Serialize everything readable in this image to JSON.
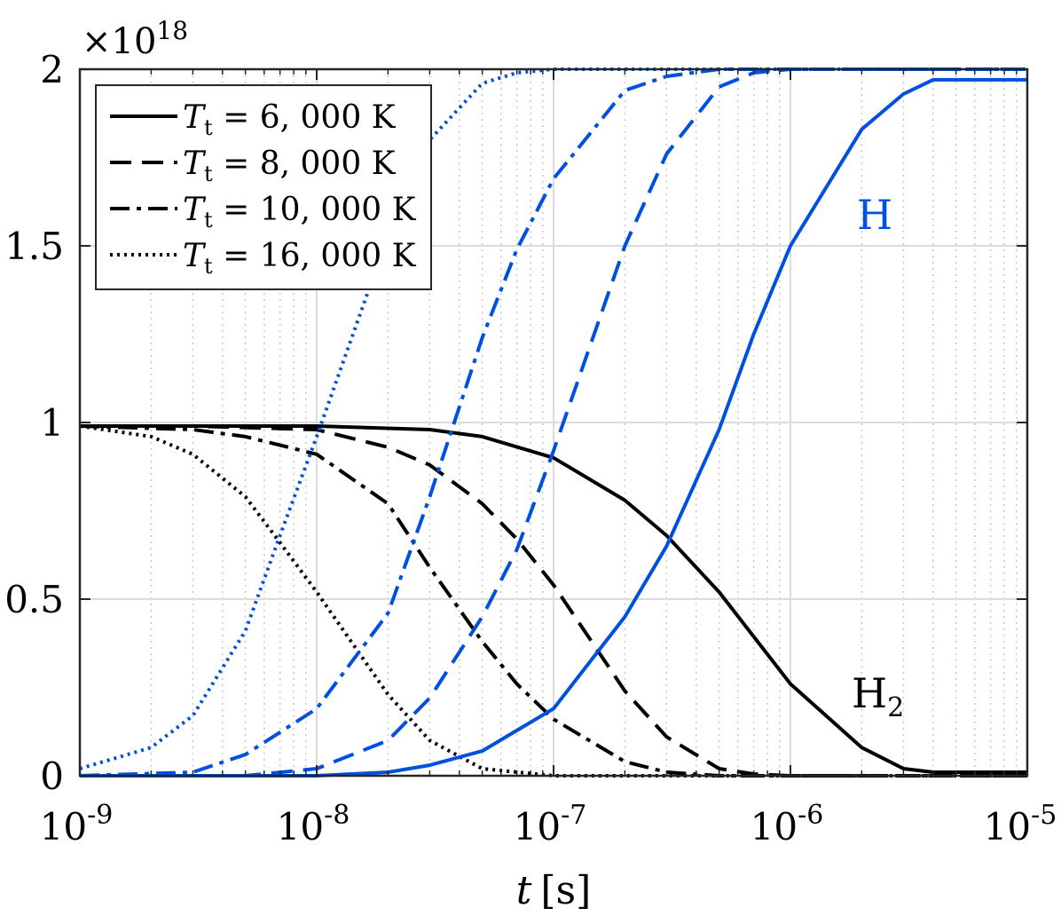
{
  "chart_data": {
    "type": "line",
    "x_scale": "log",
    "xlim": [
      "1e-9",
      "1e-5"
    ],
    "ylim": [
      0,
      2
    ],
    "grid": true,
    "legend_position": "top-left",
    "xlabel": {
      "var": "t",
      "unit": "[s]"
    },
    "y_multiplier": {
      "base": "×10",
      "exp": "18"
    },
    "x_ticks": [
      {
        "value": "1e-9",
        "base": "10",
        "exp": "-9"
      },
      {
        "value": "1e-8",
        "base": "10",
        "exp": "-8"
      },
      {
        "value": "1e-7",
        "base": "10",
        "exp": "-7"
      },
      {
        "value": "1e-6",
        "base": "10",
        "exp": "-6"
      },
      {
        "value": "1e-5",
        "base": "10",
        "exp": "-5"
      }
    ],
    "y_ticks": [
      {
        "value": 0,
        "label": "0"
      },
      {
        "value": 0.5,
        "label": "0.5"
      },
      {
        "value": 1,
        "label": "1"
      },
      {
        "value": 1.5,
        "label": "1.5"
      },
      {
        "value": 2,
        "label": "2"
      }
    ],
    "legend": [
      {
        "T": "T",
        "sub": "t",
        "text": " = 6, 000 K",
        "style": "solid"
      },
      {
        "T": "T",
        "sub": "t",
        "text": " = 8, 000 K",
        "style": "dashed"
      },
      {
        "T": "T",
        "sub": "t",
        "text": " = 10, 000 K",
        "style": "dashdot"
      },
      {
        "T": "T",
        "sub": "t",
        "text": " = 16, 000 K",
        "style": "dotted"
      }
    ],
    "annotations": [
      {
        "text": "H",
        "sub": "",
        "color": "#0050e0"
      },
      {
        "text": "H",
        "sub": "2",
        "color": "#000000"
      }
    ],
    "colors": {
      "H": "#0050e0",
      "H2": "#000000"
    },
    "series": [
      {
        "species": "H2",
        "style": "solid",
        "x": [
          "1e-9",
          "3e-9",
          "1e-8",
          "3e-8",
          "5e-8",
          "1e-7",
          "2e-7",
          "3e-7",
          "5e-7",
          "1e-6",
          "2e-6",
          "3e-6",
          "4e-6",
          "1e-5"
        ],
        "y": [
          0.99,
          0.99,
          0.99,
          0.98,
          0.96,
          0.9,
          0.78,
          0.68,
          0.52,
          0.26,
          0.08,
          0.02,
          0.01,
          0.01
        ]
      },
      {
        "species": "H2",
        "style": "dashed",
        "x": [
          "1e-9",
          "3e-9",
          "1e-8",
          "2e-8",
          "3e-8",
          "5e-8",
          "7e-8",
          "1e-7",
          "2e-7",
          "3e-7",
          "5e-7",
          "7e-7",
          "1e-6",
          "1e-5"
        ],
        "y": [
          0.99,
          0.99,
          0.98,
          0.93,
          0.88,
          0.77,
          0.67,
          0.54,
          0.24,
          0.11,
          0.02,
          0.005,
          0.0,
          0.0
        ]
      },
      {
        "species": "H2",
        "style": "dashdot",
        "x": [
          "1e-9",
          "3e-9",
          "5e-9",
          "1e-8",
          "2e-8",
          "3e-8",
          "5e-8",
          "7e-8",
          "1e-7",
          "2e-7",
          "3e-7",
          "5e-7",
          "1e-5"
        ],
        "y": [
          0.99,
          0.98,
          0.96,
          0.91,
          0.77,
          0.59,
          0.38,
          0.26,
          0.16,
          0.04,
          0.01,
          0.0,
          0.0
        ]
      },
      {
        "species": "H2",
        "style": "dotted",
        "x": [
          "1e-9",
          "2e-9",
          "3e-9",
          "5e-9",
          "7e-9",
          "1e-8",
          "2e-8",
          "3e-8",
          "5e-8",
          "1e-7",
          "1e-5"
        ],
        "y": [
          0.99,
          0.96,
          0.91,
          0.79,
          0.66,
          0.52,
          0.23,
          0.1,
          0.02,
          0.0,
          0.0
        ]
      },
      {
        "species": "H",
        "style": "solid",
        "x": [
          "1e-9",
          "1e-8",
          "2e-8",
          "3e-8",
          "5e-8",
          "1e-7",
          "2e-7",
          "3e-7",
          "5e-7",
          "7e-7",
          "1e-6",
          "2e-6",
          "3e-6",
          "4e-6",
          "1e-5"
        ],
        "y": [
          0.0,
          0.0,
          0.01,
          0.03,
          0.07,
          0.19,
          0.45,
          0.65,
          0.98,
          1.25,
          1.5,
          1.83,
          1.93,
          1.97,
          1.97
        ]
      },
      {
        "species": "H",
        "style": "dashed",
        "x": [
          "1e-9",
          "5e-9",
          "1e-8",
          "2e-8",
          "3e-8",
          "5e-8",
          "7e-8",
          "1e-7",
          "2e-7",
          "3e-7",
          "5e-7",
          "7e-7",
          "1e-6",
          "1e-5"
        ],
        "y": [
          0.0,
          0.0,
          0.02,
          0.1,
          0.22,
          0.45,
          0.64,
          0.92,
          1.5,
          1.76,
          1.95,
          1.99,
          2.0,
          2.0
        ]
      },
      {
        "species": "H",
        "style": "dashdot",
        "x": [
          "1e-9",
          "3e-9",
          "5e-9",
          "1e-8",
          "2e-8",
          "3e-8",
          "5e-8",
          "7e-8",
          "1e-7",
          "2e-7",
          "3e-7",
          "5e-7",
          "1e-5"
        ],
        "y": [
          0.0,
          0.01,
          0.06,
          0.19,
          0.46,
          0.79,
          1.24,
          1.49,
          1.69,
          1.94,
          1.98,
          2.0,
          2.0
        ]
      },
      {
        "species": "H",
        "style": "dotted",
        "x": [
          "1e-9",
          "2e-9",
          "3e-9",
          "5e-9",
          "7e-9",
          "1e-8",
          "2e-8",
          "3e-8",
          "5e-8",
          "7e-8",
          "1e-7",
          "1e-5"
        ],
        "y": [
          0.02,
          0.08,
          0.17,
          0.41,
          0.68,
          0.96,
          1.53,
          1.8,
          1.96,
          1.99,
          2.0,
          2.0
        ]
      }
    ]
  }
}
